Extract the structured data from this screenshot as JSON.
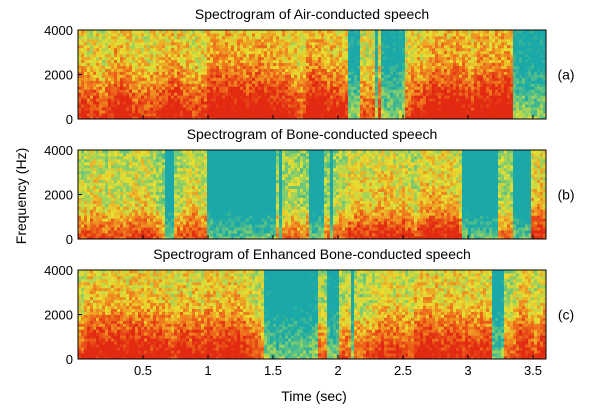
{
  "figure": {
    "ylabel": "Frequency (Hz)",
    "xlabel": "Time (sec)"
  },
  "chart_data": [
    {
      "type": "heatmap",
      "title": "Spectrogram of Air-conducted speech",
      "panel_label": "(a)",
      "xlim": [
        0,
        3.6
      ],
      "ylim": [
        0,
        4000
      ],
      "yticks": [
        0,
        2000,
        4000
      ],
      "xticks": [],
      "colormap": [
        "#1aa8a8",
        "#6cc87a",
        "#e8e030",
        "#f07a1e",
        "#e22a12"
      ],
      "mean_intensity": 0.68,
      "x_axis_label": ""
    },
    {
      "type": "heatmap",
      "title": "Spectrogram of Bone-conducted speech",
      "panel_label": "(b)",
      "xlim": [
        0,
        3.6
      ],
      "ylim": [
        0,
        4000
      ],
      "yticks": [
        0,
        2000,
        4000
      ],
      "xticks": [],
      "colormap": [
        "#1aa8a8",
        "#6cc87a",
        "#e8e030",
        "#f07a1e",
        "#e22a12"
      ],
      "mean_intensity": 0.45,
      "x_axis_label": ""
    },
    {
      "type": "heatmap",
      "title": "Spectrogram of Enhanced Bone-conducted speech",
      "panel_label": "(c)",
      "xlim": [
        0,
        3.6
      ],
      "ylim": [
        0,
        4000
      ],
      "yticks": [
        0,
        2000,
        4000
      ],
      "xticks": [
        0.5,
        1,
        1.5,
        2,
        2.5,
        3,
        3.5
      ],
      "xtick_labels": [
        "0.5",
        "1",
        "1.5",
        "2",
        "2.5",
        "3",
        "3.5"
      ],
      "colormap": [
        "#1aa8a8",
        "#6cc87a",
        "#e8e030",
        "#f07a1e",
        "#e22a12"
      ],
      "mean_intensity": 0.55,
      "x_axis_label": "Time (sec)"
    }
  ]
}
